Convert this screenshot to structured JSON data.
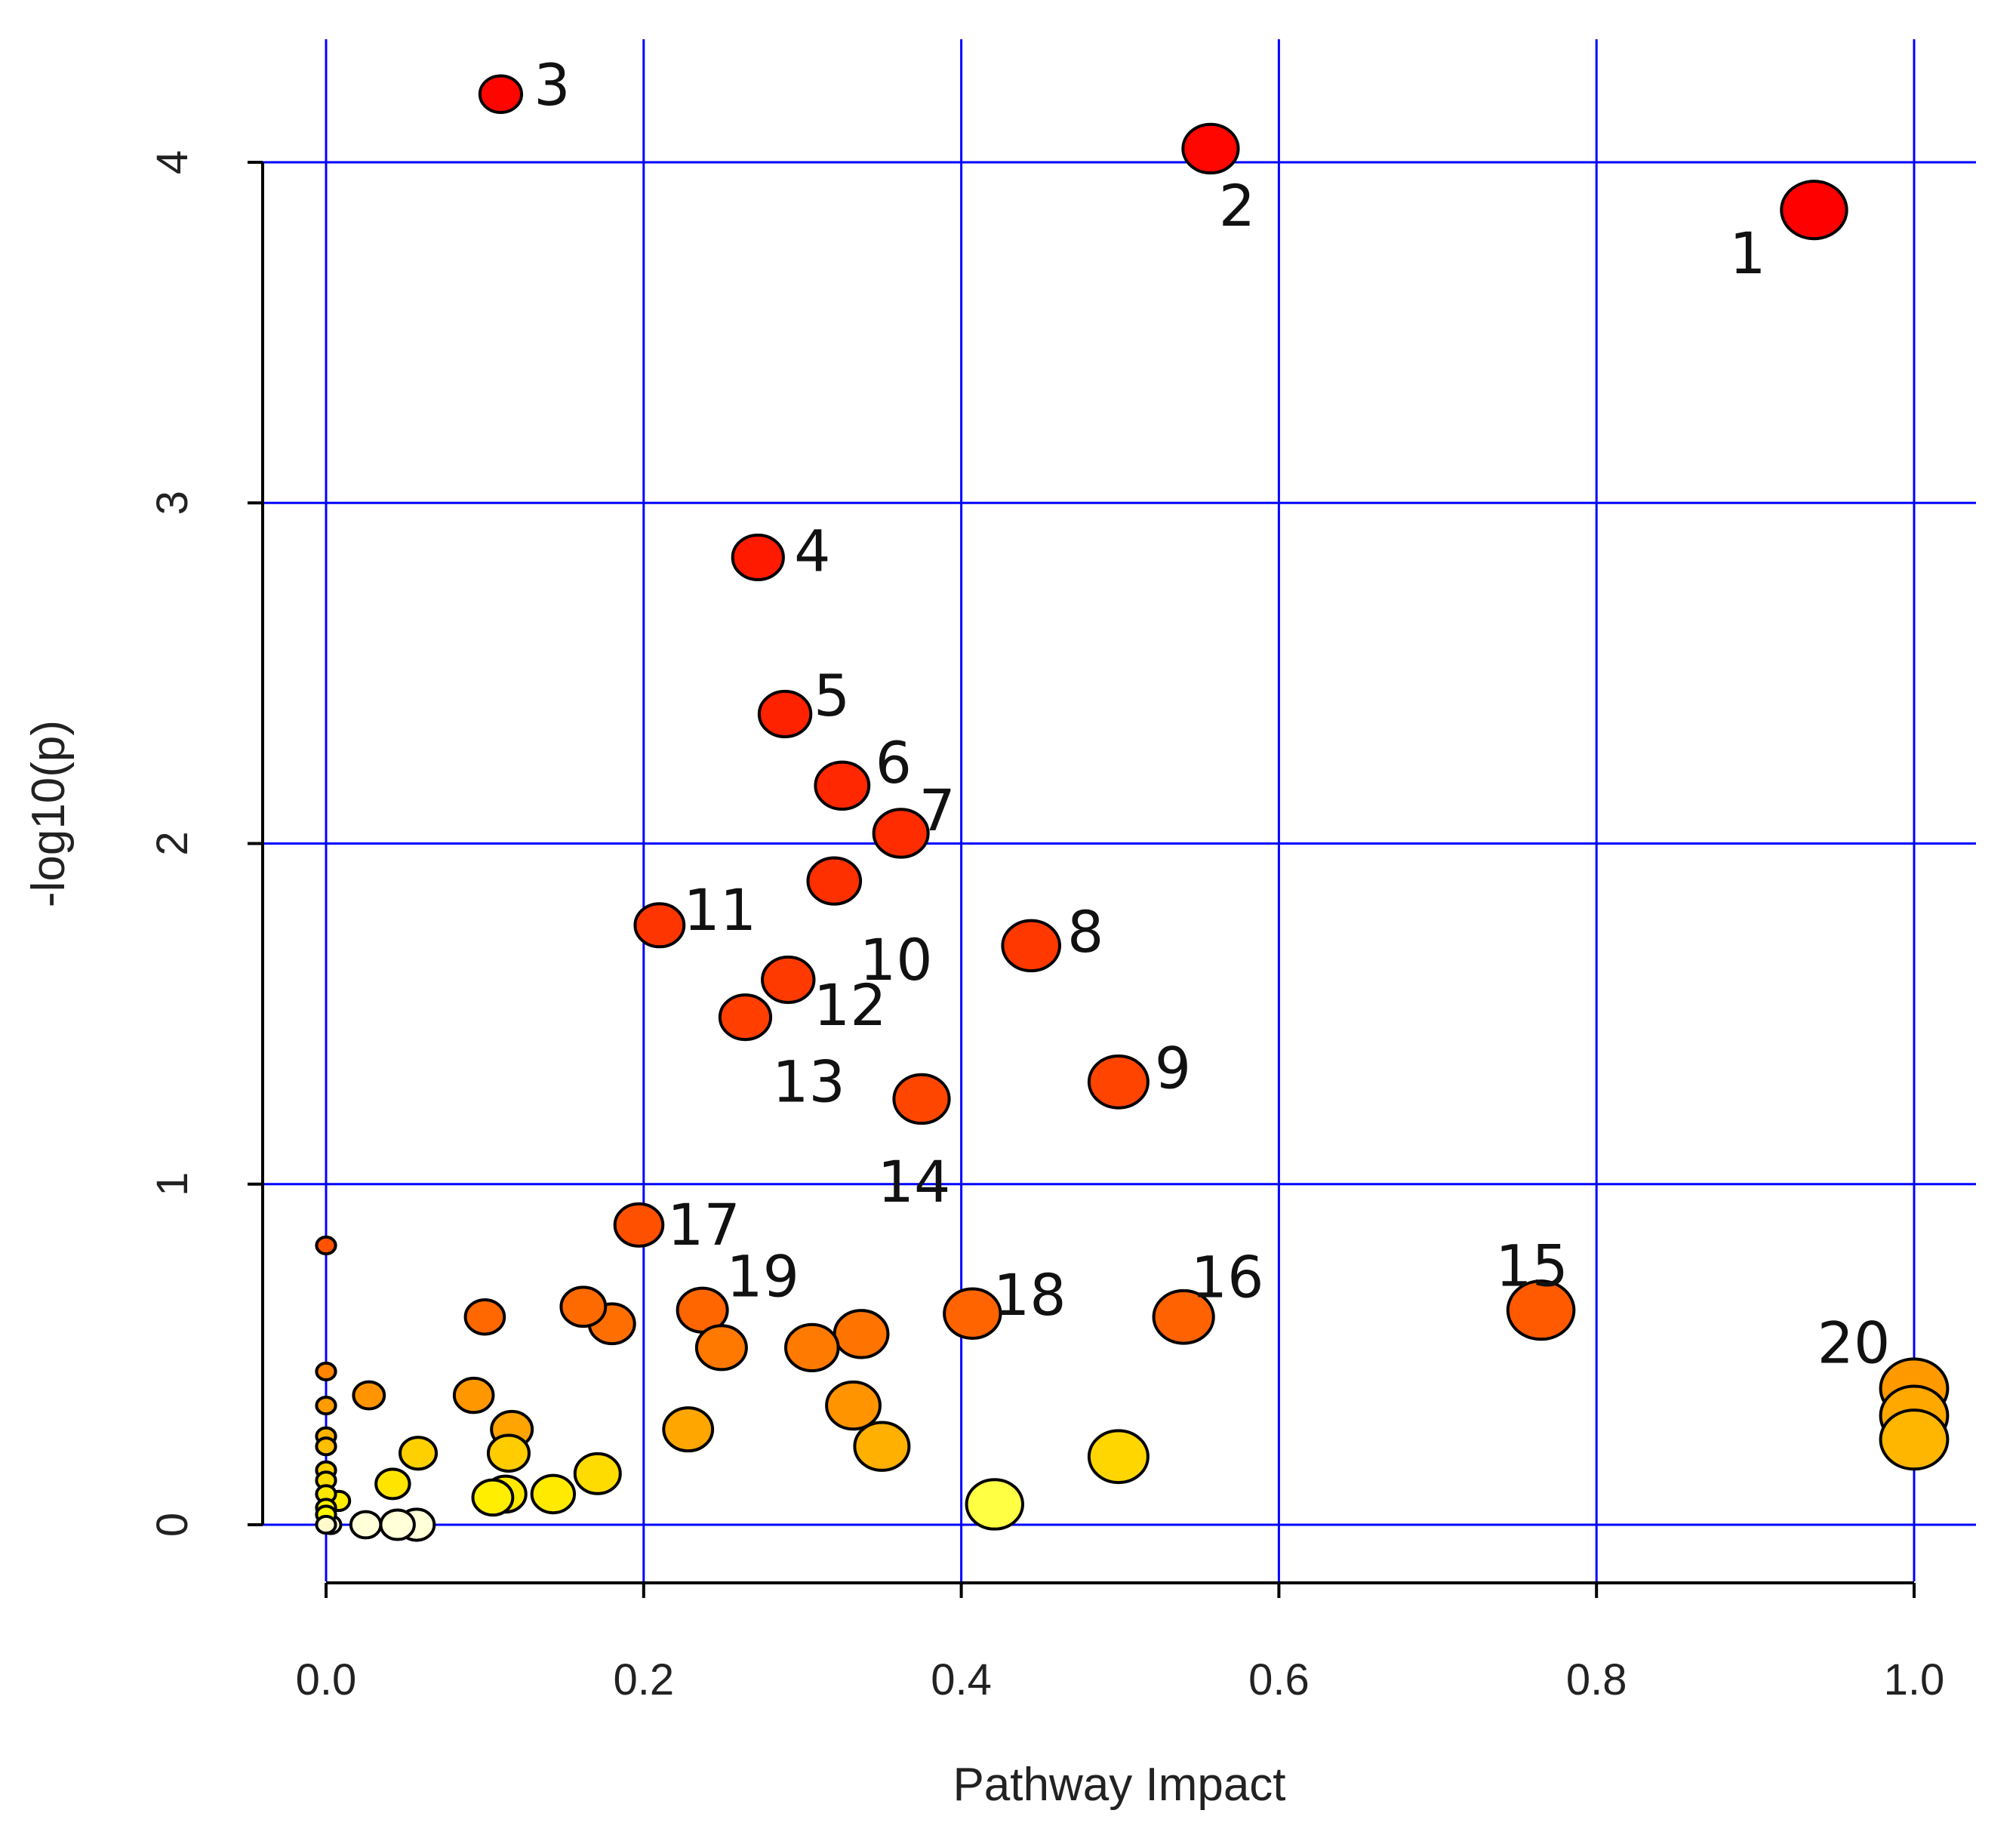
{
  "chart_data": {
    "type": "scatter",
    "title": "",
    "xlabel": "Pathway Impact",
    "ylabel": "-log10(p)",
    "xlim": [
      -0.04,
      1.04
    ],
    "ylim": [
      -0.17,
      4.39
    ],
    "xticks": [
      0.0,
      0.2,
      0.4,
      0.6,
      0.8,
      1.0
    ],
    "xtick_labels": [
      "0.0",
      "0.2",
      "0.4",
      "0.6",
      "0.8",
      "1.0"
    ],
    "yticks": [
      0,
      1,
      2,
      3,
      4
    ],
    "ytick_labels": [
      "0",
      "1",
      "2",
      "3",
      "4"
    ],
    "grid": true,
    "grid_color": "#0000ff",
    "axis_color": "#000000",
    "point_outline": "#000000",
    "note": "Bubble radius encodes pathway impact; color runs white-yellow-orange-red with significance.",
    "points": [
      {
        "label": "1",
        "x": 0.937,
        "y": 3.86,
        "r": 0.072,
        "color": "#ff0000"
      },
      {
        "label": "2",
        "x": 0.557,
        "y": 4.04,
        "r": 0.061,
        "color": "#ff0700"
      },
      {
        "label": "3",
        "x": 0.11,
        "y": 4.2,
        "r": 0.046,
        "color": "#ff0500"
      },
      {
        "label": "4",
        "x": 0.272,
        "y": 2.84,
        "r": 0.056,
        "color": "#ff1a00"
      },
      {
        "label": "5",
        "x": 0.289,
        "y": 2.38,
        "r": 0.057,
        "color": "#ff2200"
      },
      {
        "label": "6",
        "x": 0.325,
        "y": 2.17,
        "r": 0.059,
        "color": "#ff2800"
      },
      {
        "label": "7",
        "x": 0.362,
        "y": 2.03,
        "r": 0.06,
        "color": "#ff2c00"
      },
      {
        "label": "8",
        "x": 0.444,
        "y": 1.7,
        "r": 0.063,
        "color": "#ff3800"
      },
      {
        "label": "9",
        "x": 0.499,
        "y": 1.3,
        "r": 0.065,
        "color": "#ff4400"
      },
      {
        "label": "10",
        "x": 0.32,
        "y": 1.89,
        "r": 0.058,
        "color": "#ff3000"
      },
      {
        "label": "11",
        "x": 0.21,
        "y": 1.76,
        "r": 0.054,
        "color": "#ff3500"
      },
      {
        "label": "12",
        "x": 0.291,
        "y": 1.6,
        "r": 0.057,
        "color": "#ff3a00"
      },
      {
        "label": "13",
        "x": 0.264,
        "y": 1.49,
        "r": 0.056,
        "color": "#ff3e00"
      },
      {
        "label": "14",
        "x": 0.375,
        "y": 1.25,
        "r": 0.061,
        "color": "#ff4600"
      },
      {
        "label": "15",
        "x": 0.765,
        "y": 0.63,
        "r": 0.073,
        "color": "#ff5a00"
      },
      {
        "label": "16",
        "x": 0.54,
        "y": 0.61,
        "r": 0.066,
        "color": "#ff6200"
      },
      {
        "label": "17",
        "x": 0.197,
        "y": 0.88,
        "r": 0.053,
        "color": "#ff5000"
      },
      {
        "label": "18",
        "x": 0.407,
        "y": 0.62,
        "r": 0.062,
        "color": "#ff6400"
      },
      {
        "label": "19",
        "x": 0.237,
        "y": 0.63,
        "r": 0.055,
        "color": "#ff6600"
      },
      {
        "label": "20",
        "x": 1.0,
        "y": 0.4,
        "r": 0.074,
        "color": "#ff9900"
      },
      {
        "label": "",
        "x": 1.0,
        "y": 0.32,
        "r": 0.074,
        "color": "#ffa800"
      },
      {
        "label": "",
        "x": 1.0,
        "y": 0.25,
        "r": 0.074,
        "color": "#ffb600"
      },
      {
        "label": "",
        "x": 0.0,
        "y": 0.82,
        "r": 0.021,
        "color": "#ff5200"
      },
      {
        "label": "",
        "x": 0.1,
        "y": 0.61,
        "r": 0.043,
        "color": "#ff6800"
      },
      {
        "label": "",
        "x": 0.162,
        "y": 0.64,
        "r": 0.049,
        "color": "#ff6a00"
      },
      {
        "label": "",
        "x": 0.18,
        "y": 0.59,
        "r": 0.05,
        "color": "#ff6e00"
      },
      {
        "label": "",
        "x": 0.249,
        "y": 0.52,
        "r": 0.055,
        "color": "#ff7800"
      },
      {
        "label": "",
        "x": 0.306,
        "y": 0.52,
        "r": 0.058,
        "color": "#ff7a00"
      },
      {
        "label": "",
        "x": 0.337,
        "y": 0.56,
        "r": 0.059,
        "color": "#ff7400"
      },
      {
        "label": "",
        "x": 0.332,
        "y": 0.35,
        "r": 0.059,
        "color": "#ff9400"
      },
      {
        "label": "",
        "x": 0.35,
        "y": 0.23,
        "r": 0.06,
        "color": "#ffb000"
      },
      {
        "label": "",
        "x": 0.228,
        "y": 0.28,
        "r": 0.054,
        "color": "#ffa600"
      },
      {
        "label": "",
        "x": 0.093,
        "y": 0.38,
        "r": 0.043,
        "color": "#ff9800"
      },
      {
        "label": "",
        "x": 0.117,
        "y": 0.28,
        "r": 0.045,
        "color": "#ffa400"
      },
      {
        "label": "",
        "x": 0.027,
        "y": 0.38,
        "r": 0.034,
        "color": "#ff9400"
      },
      {
        "label": "",
        "x": 0.0,
        "y": 0.45,
        "r": 0.021,
        "color": "#ff8400"
      },
      {
        "label": "",
        "x": 0.0,
        "y": 0.35,
        "r": 0.021,
        "color": "#ff9a00"
      },
      {
        "label": "",
        "x": 0.0,
        "y": 0.26,
        "r": 0.021,
        "color": "#ffb400"
      },
      {
        "label": "",
        "x": 0.0,
        "y": 0.23,
        "r": 0.021,
        "color": "#ffbe00"
      },
      {
        "label": "",
        "x": 0.0,
        "y": 0.16,
        "r": 0.021,
        "color": "#ffd200"
      },
      {
        "label": "",
        "x": 0.0,
        "y": 0.13,
        "r": 0.021,
        "color": "#ffdc00"
      },
      {
        "label": "",
        "x": 0.0,
        "y": 0.09,
        "r": 0.021,
        "color": "#ffe800"
      },
      {
        "label": "",
        "x": 0.0,
        "y": 0.05,
        "r": 0.021,
        "color": "#fff200"
      },
      {
        "label": "",
        "x": 0.0,
        "y": 0.03,
        "r": 0.021,
        "color": "#fff600"
      },
      {
        "label": "",
        "x": 0.0,
        "y": 0.0,
        "r": 0.021,
        "color": "#fffacc"
      },
      {
        "label": "",
        "x": 0.008,
        "y": 0.07,
        "r": 0.024,
        "color": "#ffee00"
      },
      {
        "label": "",
        "x": 0.003,
        "y": 0.0,
        "r": 0.022,
        "color": "#fffde0"
      },
      {
        "label": "",
        "x": 0.058,
        "y": 0.21,
        "r": 0.04,
        "color": "#ffd000"
      },
      {
        "label": "",
        "x": 0.042,
        "y": 0.12,
        "r": 0.037,
        "color": "#ffe400"
      },
      {
        "label": "",
        "x": 0.115,
        "y": 0.21,
        "r": 0.045,
        "color": "#ffcc00"
      },
      {
        "label": "",
        "x": 0.113,
        "y": 0.09,
        "r": 0.045,
        "color": "#ffe800"
      },
      {
        "label": "",
        "x": 0.105,
        "y": 0.08,
        "r": 0.044,
        "color": "#ffee00"
      },
      {
        "label": "",
        "x": 0.143,
        "y": 0.09,
        "r": 0.047,
        "color": "#ffea00"
      },
      {
        "label": "",
        "x": 0.171,
        "y": 0.15,
        "r": 0.05,
        "color": "#ffdc00"
      },
      {
        "label": "",
        "x": 0.499,
        "y": 0.2,
        "r": 0.065,
        "color": "#ffd600"
      },
      {
        "label": "",
        "x": 0.421,
        "y": 0.06,
        "r": 0.062,
        "color": "#ffff44"
      },
      {
        "label": "",
        "x": 0.025,
        "y": 0.0,
        "r": 0.033,
        "color": "#ffffd8"
      },
      {
        "label": "",
        "x": 0.045,
        "y": 0.0,
        "r": 0.037,
        "color": "#ffffd8"
      },
      {
        "label": "",
        "x": 0.057,
        "y": 0.0,
        "r": 0.039,
        "color": "#ffffd8"
      }
    ]
  }
}
